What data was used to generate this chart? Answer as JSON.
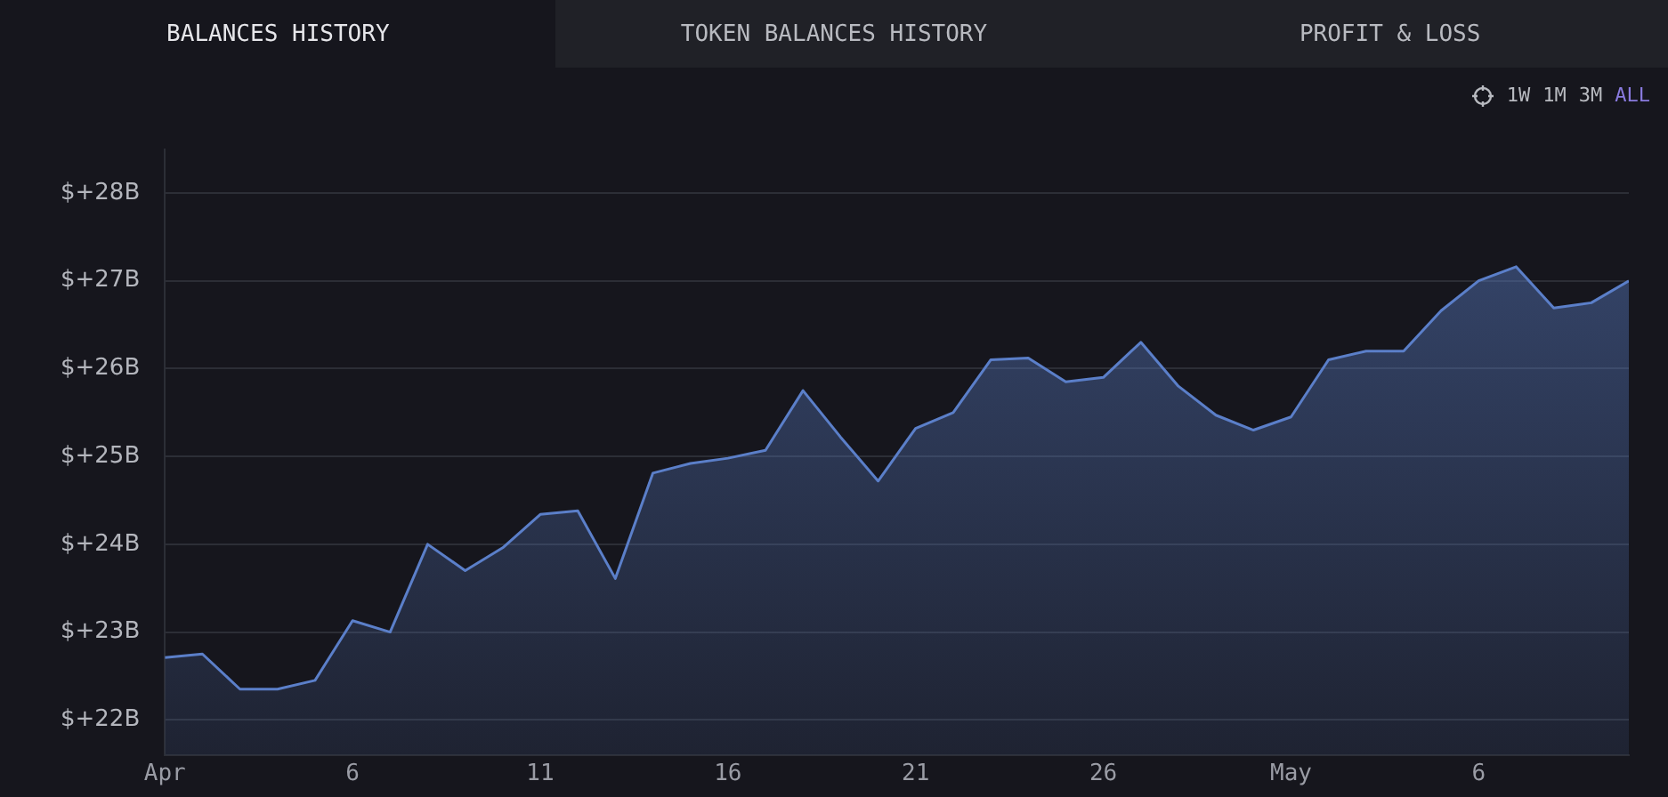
{
  "chart_data": {
    "type": "area",
    "annotations": [
      "BALANCES HISTORY",
      "TOKEN BALANCES HISTORY",
      "PROFIT & LOSS",
      "1W",
      "1M",
      "3M",
      "ALL"
    ],
    "x": [
      "--04-01",
      "--04-02",
      "--04-03",
      "--04-04",
      "--04-05",
      "--04-06",
      "--04-07",
      "--04-08",
      "--04-09",
      "--04-10",
      "--04-11",
      "--04-12",
      "--04-13",
      "--04-14",
      "--04-15",
      "--04-16",
      "--04-17",
      "--04-18",
      "--04-19",
      "--04-20",
      "--04-21",
      "--04-22",
      "--04-23",
      "--04-24",
      "--04-25",
      "--04-26",
      "--04-27",
      "--04-28",
      "--04-29",
      "--04-30",
      "--05-01",
      "--05-02",
      "--05-03",
      "--05-04",
      "--05-05",
      "--05-06",
      "--05-07",
      "--05-08",
      "--05-09",
      "--05-10"
    ],
    "series": [
      {
        "color": "#5b7fc9",
        "values": [
          22.71,
          22.75,
          22.35,
          22.35,
          22.45,
          23.13,
          23.0,
          24.0,
          23.7,
          23.96,
          24.34,
          24.38,
          23.61,
          24.81,
          24.92,
          24.98,
          25.07,
          25.75,
          25.22,
          24.72,
          25.32,
          25.5,
          26.1,
          26.12,
          25.85,
          25.9,
          26.3,
          25.8,
          25.47,
          25.3,
          25.45,
          26.1,
          26.2,
          26.2,
          26.66,
          27.0,
          27.16,
          26.69,
          26.75,
          27.0
        ]
      }
    ],
    "xlim": [
      "--04-01",
      "--05-10"
    ],
    "xticks": [
      {
        "value": "--04-01",
        "label": "Apr"
      },
      {
        "value": "--04-06",
        "label": "6"
      },
      {
        "value": "--04-11",
        "label": "11"
      },
      {
        "value": "--04-16",
        "label": "16"
      },
      {
        "value": "--04-21",
        "label": "21"
      },
      {
        "value": "--04-26",
        "label": "26"
      },
      {
        "value": "--05-01",
        "label": "May"
      },
      {
        "value": "--05-06",
        "label": "6"
      }
    ],
    "ylim": [
      21.6,
      28.5
    ],
    "yticks": [
      {
        "value": 22,
        "label": "$+22B"
      },
      {
        "value": 23,
        "label": "$+23B"
      },
      {
        "value": 24,
        "label": "$+24B"
      },
      {
        "value": 25,
        "label": "$+25B"
      },
      {
        "value": 26,
        "label": "$+26B"
      },
      {
        "value": 27,
        "label": "$+27B"
      },
      {
        "value": 28,
        "label": "$+28B"
      }
    ],
    "grid": "y",
    "legend": false,
    "marker": "none",
    "line_style": "solid"
  }
}
